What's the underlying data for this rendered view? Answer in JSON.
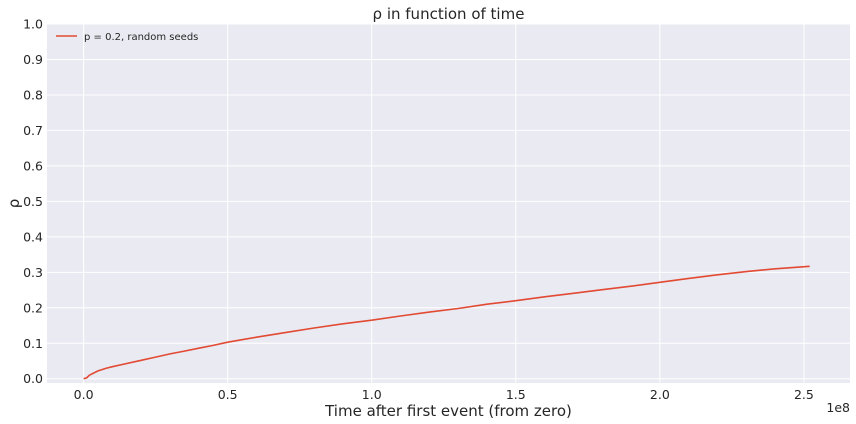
{
  "chart_data": {
    "type": "line",
    "title": "ρ in function of time",
    "xlabel": "Time after first event (from zero)",
    "ylabel": "ρ",
    "x_offset_label": "1e8",
    "xlim": [
      -0.127,
      2.66
    ],
    "ylim": [
      -0.012,
      1.0
    ],
    "x_ticks": [
      0.0,
      0.5,
      1.0,
      1.5,
      2.0,
      2.5
    ],
    "x_tick_labels": [
      "0.0",
      "0.5",
      "1.0",
      "1.5",
      "2.0",
      "2.5"
    ],
    "y_ticks": [
      0.0,
      0.1,
      0.2,
      0.3,
      0.4,
      0.5,
      0.6,
      0.7,
      0.8,
      0.9,
      1.0
    ],
    "y_tick_labels": [
      "0.0",
      "0.1",
      "0.2",
      "0.3",
      "0.4",
      "0.5",
      "0.6",
      "0.7",
      "0.8",
      "0.9",
      "1.0"
    ],
    "grid": true,
    "legend": "top-left",
    "series": [
      {
        "name": "p = 0.2, random seeds",
        "color": "#e24a33",
        "x": [
          0.0,
          0.01,
          0.02,
          0.05,
          0.08,
          0.1,
          0.15,
          0.2,
          0.25,
          0.3,
          0.35,
          0.4,
          0.45,
          0.5,
          0.6,
          0.7,
          0.8,
          0.9,
          1.0,
          1.1,
          1.2,
          1.3,
          1.4,
          1.5,
          1.6,
          1.7,
          1.8,
          1.9,
          2.0,
          2.1,
          2.2,
          2.3,
          2.4,
          2.52
        ],
        "y": [
          0.0,
          0.002,
          0.01,
          0.022,
          0.03,
          0.034,
          0.043,
          0.052,
          0.061,
          0.07,
          0.078,
          0.086,
          0.094,
          0.103,
          0.117,
          0.13,
          0.143,
          0.155,
          0.165,
          0.177,
          0.188,
          0.198,
          0.21,
          0.22,
          0.231,
          0.241,
          0.251,
          0.261,
          0.272,
          0.283,
          0.293,
          0.302,
          0.31,
          0.317
        ]
      }
    ]
  }
}
